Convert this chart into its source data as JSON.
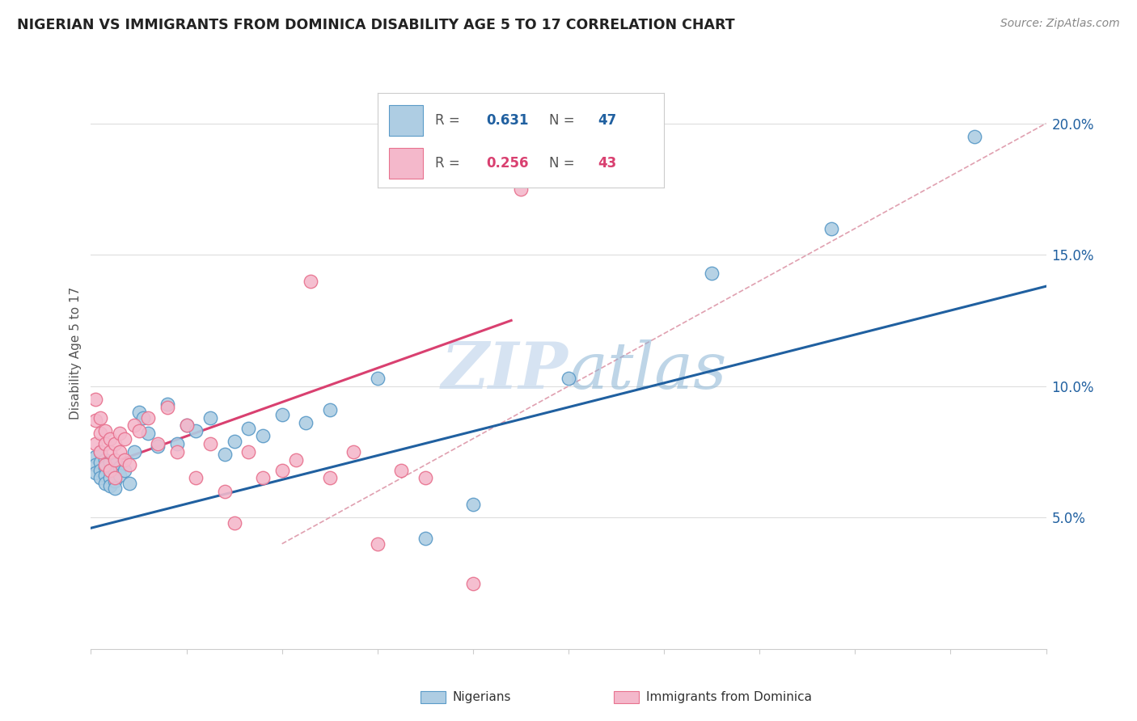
{
  "title": "NIGERIAN VS IMMIGRANTS FROM DOMINICA DISABILITY AGE 5 TO 17 CORRELATION CHART",
  "source": "Source: ZipAtlas.com",
  "ylabel": "Disability Age 5 to 17",
  "ytick_labels": [
    "5.0%",
    "10.0%",
    "15.0%",
    "20.0%"
  ],
  "ytick_values": [
    0.05,
    0.1,
    0.15,
    0.2
  ],
  "xmin": 0.0,
  "xmax": 0.2,
  "ymin": 0.0,
  "ymax": 0.225,
  "legend_R1": "R = ",
  "legend_V1": "0.631",
  "legend_N1_label": "N = ",
  "legend_N1": "47",
  "legend_R2": "R = ",
  "legend_V2": "0.256",
  "legend_N2_label": "N = ",
  "legend_N2": "43",
  "blue_color": "#aecde3",
  "pink_color": "#f4b8cb",
  "blue_edge_color": "#5b9bc8",
  "pink_edge_color": "#e8728f",
  "blue_line_color": "#2060a0",
  "pink_line_color": "#d94070",
  "diag_line_color": "#e0a0b0",
  "watermark_color": "#c5d8ed",
  "blue_scatter_x": [
    0.001,
    0.001,
    0.001,
    0.002,
    0.002,
    0.002,
    0.002,
    0.003,
    0.003,
    0.003,
    0.003,
    0.004,
    0.004,
    0.004,
    0.004,
    0.005,
    0.005,
    0.005,
    0.005,
    0.006,
    0.006,
    0.007,
    0.008,
    0.009,
    0.01,
    0.011,
    0.012,
    0.014,
    0.016,
    0.018,
    0.02,
    0.022,
    0.025,
    0.028,
    0.03,
    0.033,
    0.036,
    0.04,
    0.045,
    0.05,
    0.06,
    0.07,
    0.08,
    0.1,
    0.13,
    0.155,
    0.185
  ],
  "blue_scatter_y": [
    0.073,
    0.07,
    0.067,
    0.075,
    0.071,
    0.068,
    0.065,
    0.072,
    0.069,
    0.066,
    0.063,
    0.071,
    0.068,
    0.065,
    0.062,
    0.07,
    0.067,
    0.064,
    0.061,
    0.069,
    0.066,
    0.068,
    0.063,
    0.075,
    0.09,
    0.088,
    0.082,
    0.077,
    0.093,
    0.078,
    0.085,
    0.083,
    0.088,
    0.074,
    0.079,
    0.084,
    0.081,
    0.089,
    0.086,
    0.091,
    0.103,
    0.042,
    0.055,
    0.103,
    0.143,
    0.16,
    0.195
  ],
  "pink_scatter_x": [
    0.001,
    0.001,
    0.001,
    0.002,
    0.002,
    0.002,
    0.003,
    0.003,
    0.003,
    0.004,
    0.004,
    0.004,
    0.005,
    0.005,
    0.005,
    0.006,
    0.006,
    0.007,
    0.007,
    0.008,
    0.009,
    0.01,
    0.012,
    0.014,
    0.016,
    0.018,
    0.02,
    0.022,
    0.025,
    0.028,
    0.03,
    0.033,
    0.036,
    0.04,
    0.043,
    0.046,
    0.05,
    0.055,
    0.06,
    0.065,
    0.07,
    0.08,
    0.09
  ],
  "pink_scatter_y": [
    0.095,
    0.087,
    0.078,
    0.088,
    0.082,
    0.075,
    0.083,
    0.078,
    0.07,
    0.08,
    0.075,
    0.068,
    0.078,
    0.072,
    0.065,
    0.082,
    0.075,
    0.08,
    0.072,
    0.07,
    0.085,
    0.083,
    0.088,
    0.078,
    0.092,
    0.075,
    0.085,
    0.065,
    0.078,
    0.06,
    0.048,
    0.075,
    0.065,
    0.068,
    0.072,
    0.14,
    0.065,
    0.075,
    0.04,
    0.068,
    0.065,
    0.025,
    0.175
  ],
  "blue_line_x": [
    0.0,
    0.2
  ],
  "blue_line_y": [
    0.046,
    0.138
  ],
  "pink_line_x": [
    0.0,
    0.088
  ],
  "pink_line_y": [
    0.068,
    0.125
  ],
  "diag_line_x": [
    0.04,
    0.2
  ],
  "diag_line_y": [
    0.04,
    0.2
  ]
}
